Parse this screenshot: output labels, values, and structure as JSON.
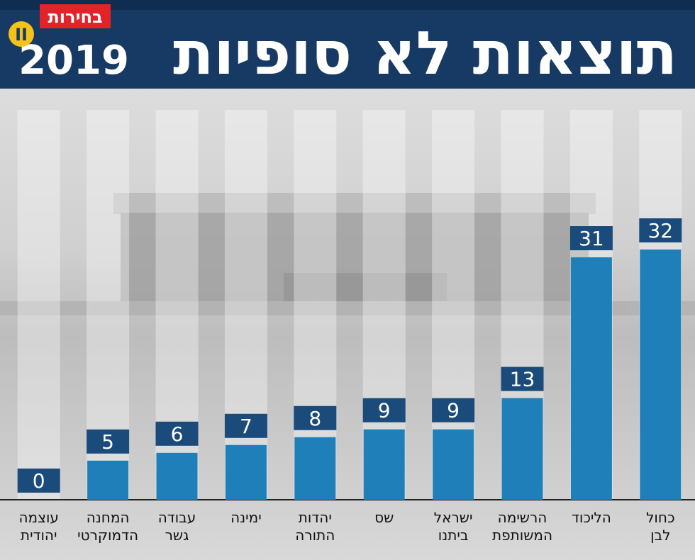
{
  "header": {
    "title": "תוצאות לא סופיות",
    "logo": {
      "text": "בחירות",
      "year": "2019",
      "edition": "II"
    }
  },
  "chart_data": {
    "type": "bar",
    "categories": [
      [
        "עוצמה",
        "יהודית"
      ],
      [
        "המחנה",
        "הדמוקרטי"
      ],
      [
        "עבודה",
        "גשר"
      ],
      [
        "ימינה"
      ],
      [
        "יהדות",
        "התורה"
      ],
      [
        "שס"
      ],
      [
        "ישראל",
        "ביתנו"
      ],
      [
        "הרשימה",
        "המשותפת"
      ],
      [
        "הליכוד"
      ],
      [
        "כחול",
        "לבן"
      ]
    ],
    "values": [
      0,
      5,
      6,
      7,
      8,
      9,
      9,
      13,
      31,
      32
    ],
    "color": "#1f80b9",
    "label_color": "#1a4b7b"
  }
}
